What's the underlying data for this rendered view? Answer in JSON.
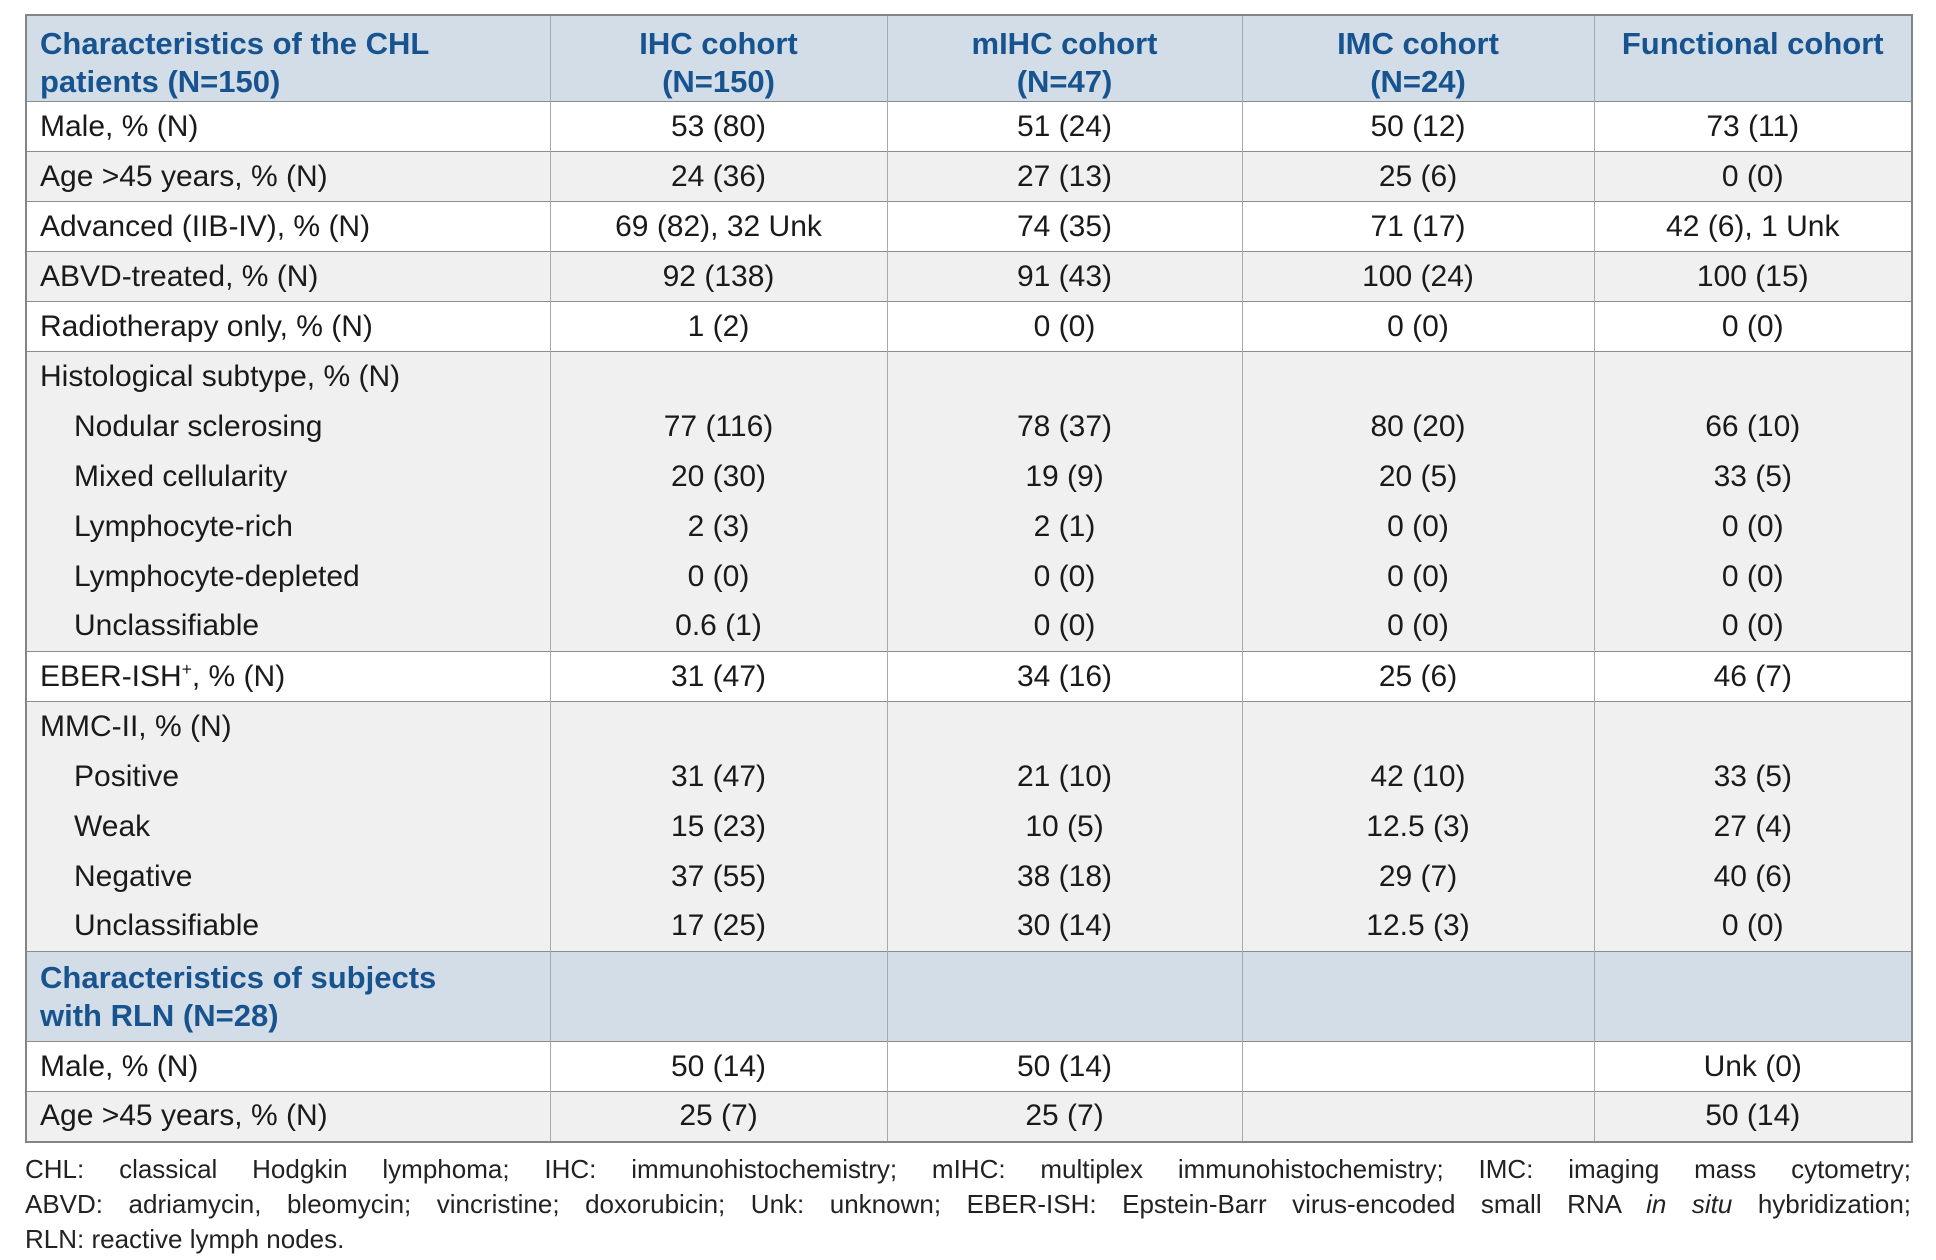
{
  "table": {
    "header": [
      {
        "line1": "Characteristics of the CHL",
        "line2": "patients (N=150)"
      },
      {
        "line1": "IHC cohort",
        "line2": "(N=150)"
      },
      {
        "line1": "mIHC cohort",
        "line2": "(N=47)"
      },
      {
        "line1": "IMC cohort",
        "line2": "(N=24)"
      },
      {
        "line1": "Functional cohort",
        "line2": ""
      }
    ],
    "rows": [
      {
        "type": "data",
        "label": "Male, % (N)",
        "indent": false,
        "shade": "white",
        "divider": true,
        "cells": [
          "53 (80)",
          "51 (24)",
          "50 (12)",
          "73 (11)"
        ]
      },
      {
        "type": "data",
        "label": "Age >45 years, % (N)",
        "indent": false,
        "shade": "grey",
        "divider": true,
        "cells": [
          "24 (36)",
          "27 (13)",
          "25 (6)",
          "0 (0)"
        ]
      },
      {
        "type": "data",
        "label": "Advanced (IIB-IV), % (N)",
        "indent": false,
        "shade": "white",
        "divider": true,
        "cells": [
          "69 (82), 32 Unk",
          "74 (35)",
          "71 (17)",
          "42 (6), 1 Unk"
        ]
      },
      {
        "type": "data",
        "label": "ABVD-treated, % (N)",
        "indent": false,
        "shade": "grey",
        "divider": true,
        "cells": [
          "92 (138)",
          "91 (43)",
          "100 (24)",
          "100 (15)"
        ]
      },
      {
        "type": "data",
        "label": "Radiotherapy only, % (N)",
        "indent": false,
        "shade": "white",
        "divider": true,
        "cells": [
          "1 (2)",
          "0 (0)",
          "0 (0)",
          "0 (0)"
        ]
      },
      {
        "type": "data",
        "label": "Histological subtype, % (N)",
        "indent": false,
        "shade": "grey",
        "divider": true,
        "cells": [
          "",
          "",
          "",
          ""
        ]
      },
      {
        "type": "data",
        "label": "Nodular sclerosing",
        "indent": true,
        "shade": "grey",
        "divider": false,
        "cells": [
          "77 (116)",
          "78 (37)",
          "80 (20)",
          "66 (10)"
        ]
      },
      {
        "type": "data",
        "label": "Mixed cellularity",
        "indent": true,
        "shade": "grey",
        "divider": false,
        "cells": [
          "20 (30)",
          "19 (9)",
          "20 (5)",
          "33 (5)"
        ]
      },
      {
        "type": "data",
        "label": "Lymphocyte-rich",
        "indent": true,
        "shade": "grey",
        "divider": false,
        "cells": [
          "2 (3)",
          "2 (1)",
          "0 (0)",
          "0 (0)"
        ]
      },
      {
        "type": "data",
        "label": "Lymphocyte-depleted",
        "indent": true,
        "shade": "grey",
        "divider": false,
        "cells": [
          "0 (0)",
          "0 (0)",
          "0 (0)",
          "0 (0)"
        ]
      },
      {
        "type": "data",
        "label": "Unclassifiable",
        "indent": true,
        "shade": "grey",
        "divider": false,
        "cells": [
          "0.6 (1)",
          "0 (0)",
          "0 (0)",
          "0 (0)"
        ]
      },
      {
        "type": "data",
        "label": "EBER-ISH",
        "label_sup": "+",
        "label_post": ", % (N)",
        "indent": false,
        "shade": "white",
        "divider": true,
        "cells": [
          "31 (47)",
          "34 (16)",
          "25 (6)",
          "46 (7)"
        ]
      },
      {
        "type": "data",
        "label": "MMC-II, % (N)",
        "indent": false,
        "shade": "grey",
        "divider": true,
        "cells": [
          "",
          "",
          "",
          ""
        ]
      },
      {
        "type": "data",
        "label": "Positive",
        "indent": true,
        "shade": "grey",
        "divider": false,
        "cells": [
          "31 (47)",
          "21 (10)",
          "42 (10)",
          "33 (5)"
        ]
      },
      {
        "type": "data",
        "label": "Weak",
        "indent": true,
        "shade": "grey",
        "divider": false,
        "cells": [
          "15 (23)",
          "10 (5)",
          "12.5 (3)",
          "27 (4)"
        ]
      },
      {
        "type": "data",
        "label": "Negative",
        "indent": true,
        "shade": "grey",
        "divider": false,
        "cells": [
          "37 (55)",
          "38 (18)",
          "29 (7)",
          "40 (6)"
        ]
      },
      {
        "type": "data",
        "label": "Unclassifiable",
        "indent": true,
        "shade": "grey",
        "divider": false,
        "cells": [
          "17 (25)",
          "30 (14)",
          "12.5 (3)",
          "0 (0)"
        ]
      },
      {
        "type": "section",
        "lines": [
          "Characteristics of subjects",
          "with RLN (N=28)"
        ],
        "divider": true
      },
      {
        "type": "data",
        "label": "Male, % (N)",
        "indent": false,
        "shade": "white",
        "divider": true,
        "cells": [
          "50 (14)",
          "50 (14)",
          "",
          "Unk (0)"
        ]
      },
      {
        "type": "data",
        "label": "Age >45 years, % (N)",
        "indent": false,
        "shade": "grey",
        "divider": true,
        "cells": [
          "25 (7)",
          "25 (7)",
          "",
          "50 (14)"
        ]
      }
    ]
  },
  "footer": {
    "line1": "CHL: classical Hodgkin lymphoma; IHC: immunohistochemistry; mIHC: multiplex immunohistochemistry; IMC: imaging mass cytometry;",
    "line2_pre": "ABVD: adriamycin, bleomycin; vincristine; doxorubicin; Unk: unknown; EBER-ISH: Epstein-Barr virus-encoded small RNA ",
    "line2_italic": "in situ",
    "line2_post": " hybridization;",
    "line3": "RLN: reactive lymph nodes."
  },
  "colors": {
    "header_bg": "#d3dde8",
    "header_text": "#17538f",
    "alt_row_bg": "#f0f0f0",
    "row_border": "#8c8c8c",
    "column_border": "#a9a9a9"
  }
}
